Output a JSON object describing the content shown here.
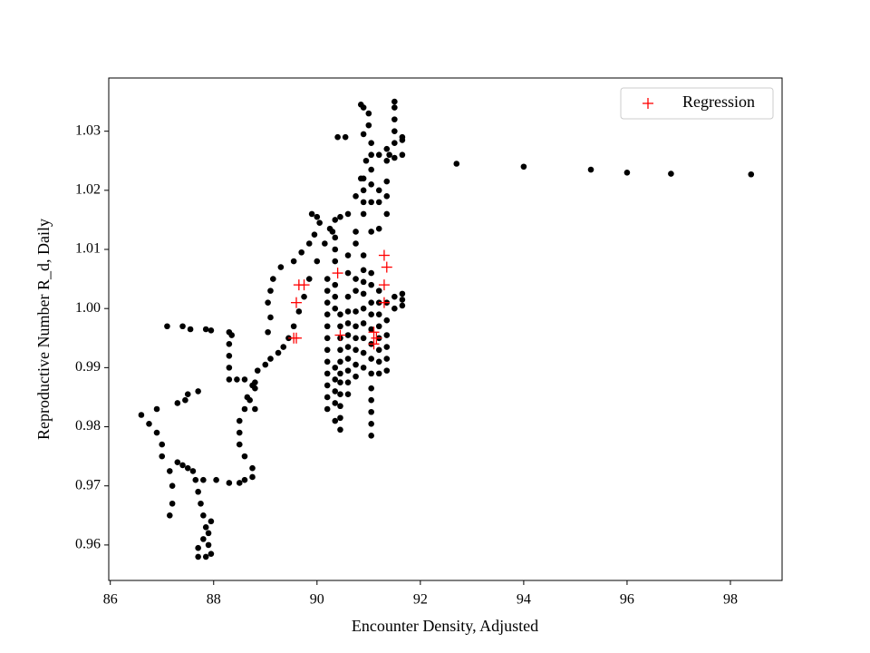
{
  "chart_data": {
    "type": "scatter",
    "xlabel": "Encounter Density, Adjusted",
    "ylabel": "Reproductive Number R_d, Daily",
    "xlim": [
      85.97,
      99.0
    ],
    "ylim": [
      0.954,
      1.039
    ],
    "xticks": [
      86,
      88,
      90,
      92,
      94,
      96,
      98
    ],
    "yticks": [
      0.96,
      0.97,
      0.98,
      0.99,
      {
        "value": 1,
        "label": "1.00"
      },
      1.01,
      1.02,
      1.03
    ],
    "legend": "upper right",
    "series": [
      {
        "color": "#000000",
        "marker": "dot",
        "x": [
          86.6,
          86.75,
          86.9,
          86.9,
          87.0,
          87.0,
          87.15,
          87.2,
          87.2,
          87.15,
          87.3,
          87.45,
          87.5,
          87.7,
          87.3,
          87.4,
          87.5,
          87.6,
          87.65,
          87.7,
          87.75,
          87.8,
          87.85,
          87.8,
          87.7,
          87.7,
          87.85,
          87.95,
          87.9,
          87.9,
          87.95,
          87.8,
          88.05,
          88.3,
          88.5,
          88.6,
          88.75,
          88.75,
          88.6,
          88.5,
          88.5,
          88.5,
          88.6,
          88.65,
          88.75,
          88.85,
          89.0,
          89.1,
          89.25,
          89.35,
          89.45,
          89.55,
          89.65,
          89.75,
          89.85,
          90.0,
          90.15,
          90.3,
          90.45,
          90.6,
          90.75,
          90.85,
          90.95,
          91.05,
          91.0,
          90.9,
          90.85,
          91.0,
          87.1,
          87.4,
          87.55,
          87.85,
          87.95,
          88.3,
          88.35,
          88.3,
          88.3,
          88.3,
          88.3,
          88.45,
          88.6,
          88.8,
          88.8,
          88.7,
          88.8,
          89.05,
          89.1,
          89.05,
          89.1,
          89.15,
          89.3,
          89.55,
          89.7,
          89.85,
          89.95,
          90.05,
          89.9,
          90.0,
          90.25,
          90.35,
          90.2,
          90.2,
          90.2,
          90.2,
          90.2,
          90.2,
          90.2,
          90.2,
          90.2,
          90.2,
          90.2,
          90.2,
          90.35,
          90.35,
          90.35,
          90.35,
          90.35,
          90.35,
          90.35,
          90.35,
          90.35,
          90.35,
          90.35,
          90.45,
          90.45,
          90.45,
          90.45,
          90.45,
          90.45,
          90.45,
          90.45,
          90.45,
          90.45,
          90.45,
          90.6,
          90.6,
          90.6,
          90.6,
          90.6,
          90.6,
          90.6,
          90.6,
          90.6,
          90.6,
          90.6,
          90.75,
          90.75,
          90.75,
          90.75,
          90.75,
          90.75,
          90.75,
          90.75,
          90.75,
          90.75,
          90.9,
          90.9,
          90.9,
          90.9,
          90.9,
          90.9,
          90.9,
          90.9,
          90.9,
          90.9,
          90.9,
          90.9,
          90.9,
          91.05,
          91.05,
          91.05,
          91.05,
          91.05,
          91.05,
          91.05,
          91.05,
          91.05,
          91.05,
          91.05,
          91.05,
          91.05,
          91.05,
          91.05,
          91.05,
          91.05,
          91.05,
          91.2,
          91.2,
          91.2,
          91.2,
          91.2,
          91.2,
          91.2,
          91.2,
          91.2,
          91.2,
          91.2,
          91.35,
          91.35,
          91.35,
          91.35,
          91.35,
          91.35,
          91.35,
          91.35,
          91.35,
          91.35,
          91.35,
          91.5,
          91.5,
          91.5,
          91.5,
          91.5,
          91.5,
          91.5,
          91.5,
          91.65,
          91.65,
          91.65,
          91.65,
          91.65,
          91.65,
          90.4,
          90.55,
          90.9,
          91.2,
          91.4,
          92.7,
          94.0,
          95.3,
          96.0,
          96.85,
          98.4
        ],
        "values": [
          0.982,
          0.9805,
          0.983,
          0.979,
          0.977,
          0.975,
          0.9725,
          0.97,
          0.967,
          0.965,
          0.984,
          0.9845,
          0.9855,
          0.986,
          0.974,
          0.9735,
          0.973,
          0.9725,
          0.971,
          0.969,
          0.967,
          0.965,
          0.963,
          0.961,
          0.9595,
          0.958,
          0.958,
          0.9585,
          0.96,
          0.962,
          0.964,
          0.971,
          0.971,
          0.9705,
          0.9705,
          0.971,
          0.9715,
          0.973,
          0.975,
          0.977,
          0.979,
          0.981,
          0.983,
          0.985,
          0.987,
          0.9895,
          0.9905,
          0.9915,
          0.9925,
          0.9935,
          0.995,
          0.997,
          0.9995,
          1.002,
          1.005,
          1.008,
          1.011,
          1.013,
          1.0155,
          1.016,
          1.019,
          1.022,
          1.025,
          1.028,
          1.031,
          1.034,
          1.0345,
          1.033,
          0.997,
          0.997,
          0.9965,
          0.9965,
          0.9963,
          0.996,
          0.9955,
          0.994,
          0.992,
          0.99,
          0.988,
          0.988,
          0.988,
          0.9875,
          0.9865,
          0.9845,
          0.983,
          0.996,
          0.9985,
          1.001,
          1.003,
          1.005,
          1.007,
          1.008,
          1.0095,
          1.011,
          1.0125,
          1.0145,
          1.016,
          1.0155,
          1.0135,
          1.015,
          0.983,
          0.985,
          0.987,
          0.989,
          0.991,
          0.993,
          0.995,
          0.997,
          0.999,
          1.001,
          1.003,
          1.005,
          0.981,
          0.984,
          0.986,
          0.988,
          0.99,
          1.0,
          1.002,
          1.004,
          1.008,
          1.01,
          1.012,
          0.9795,
          0.9815,
          0.9835,
          0.9855,
          0.9875,
          0.989,
          0.991,
          0.993,
          0.995,
          0.997,
          0.999,
          0.9855,
          0.9875,
          0.9895,
          0.9915,
          0.9935,
          0.9955,
          0.9975,
          0.9995,
          1.002,
          1.006,
          1.009,
          0.9885,
          0.9905,
          0.993,
          0.995,
          0.997,
          0.9995,
          1.003,
          1.005,
          1.011,
          1.013,
          0.99,
          0.9925,
          0.995,
          0.9975,
          1.0,
          1.0025,
          1.0045,
          1.0065,
          1.009,
          1.016,
          1.018,
          1.02,
          1.022,
          0.9785,
          0.9805,
          0.9825,
          0.9845,
          0.9865,
          0.989,
          0.9915,
          0.994,
          0.9965,
          0.999,
          1.001,
          1.004,
          1.006,
          1.013,
          1.018,
          1.021,
          1.0235,
          1.026,
          0.989,
          0.991,
          0.993,
          0.995,
          0.997,
          0.999,
          1.001,
          1.003,
          1.0135,
          1.018,
          1.02,
          0.9895,
          0.9915,
          0.9935,
          0.9955,
          0.998,
          1.001,
          1.016,
          1.019,
          1.0215,
          1.025,
          1.027,
          1.0,
          1.002,
          1.0255,
          1.028,
          1.03,
          1.032,
          1.034,
          1.035,
          1.0005,
          1.0015,
          1.0025,
          1.026,
          1.0285,
          1.029,
          1.029,
          1.029,
          1.0295,
          1.026,
          1.026,
          1.0245,
          1.024,
          1.0235,
          1.023,
          1.0228,
          1.0227
        ]
      },
      {
        "name": "Regression",
        "color": "#ff0000",
        "marker": "plus",
        "x": [
          89.55,
          89.6,
          89.6,
          89.65,
          89.75,
          90.4,
          90.45,
          91.1,
          91.1,
          91.15,
          91.3,
          91.3,
          91.35,
          91.3
        ],
        "values": [
          0.995,
          0.995,
          1.001,
          1.004,
          1.004,
          1.006,
          0.9955,
          0.996,
          0.994,
          0.995,
          1.009,
          1.004,
          1.007,
          1.001
        ]
      }
    ]
  }
}
